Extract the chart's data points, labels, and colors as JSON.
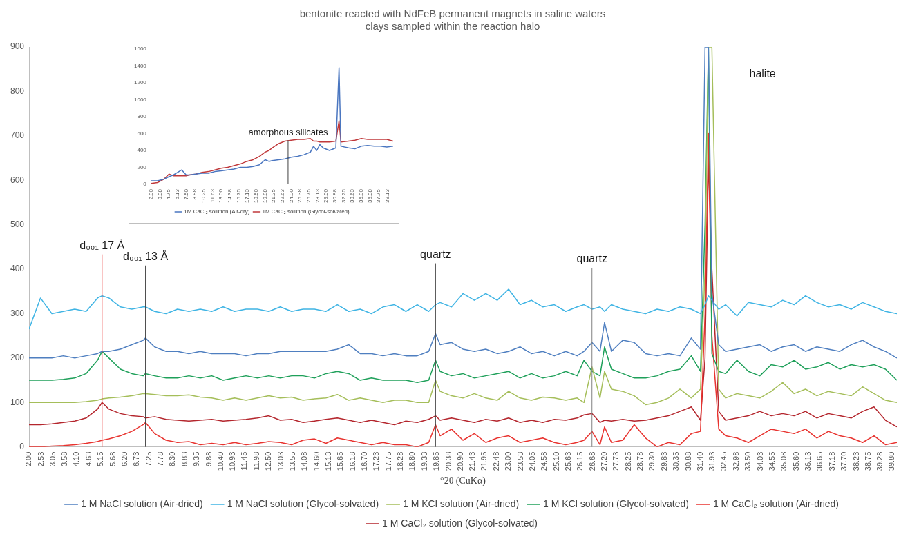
{
  "chart_data": [
    {
      "type": "line",
      "title": "bentonite reacted with NdFeB permanent magnets in saline waters",
      "subtitle": "clays sampled within the reaction halo",
      "xlabel": "°2θ (CuKα)",
      "x": [
        2,
        2.5,
        3,
        3.5,
        4,
        4.5,
        5,
        5.2,
        5.5,
        6,
        6.5,
        7,
        7.1,
        7.5,
        8,
        8.5,
        9,
        9.5,
        10,
        10.5,
        11,
        11.5,
        12,
        12.5,
        13,
        13.5,
        14,
        14.5,
        15,
        15.5,
        16,
        16.5,
        17,
        17.5,
        18,
        18.5,
        19,
        19.5,
        19.8,
        20,
        20.5,
        21,
        21.5,
        22,
        22.5,
        23,
        23.5,
        24,
        24.5,
        25,
        25.5,
        26,
        26.3,
        26.65,
        27,
        27.2,
        27.5,
        28,
        28.5,
        29,
        29.5,
        30,
        30.5,
        31,
        31.4,
        31.6,
        31.75,
        31.9,
        32.2,
        32.5,
        33,
        33.5,
        34,
        34.5,
        35,
        35.5,
        36,
        36.5,
        37,
        37.5,
        38,
        38.5,
        39,
        39.5,
        40
      ],
      "series": [
        {
          "name": "1 M NaCl solution (Air-dried)",
          "color": "#4f7fc0",
          "values": [
            200,
            200,
            200,
            205,
            200,
            205,
            210,
            215,
            215,
            220,
            230,
            240,
            245,
            225,
            215,
            215,
            210,
            215,
            210,
            210,
            210,
            205,
            210,
            210,
            215,
            215,
            215,
            215,
            215,
            220,
            230,
            210,
            210,
            205,
            210,
            205,
            205,
            215,
            255,
            230,
            235,
            220,
            215,
            220,
            210,
            215,
            225,
            210,
            215,
            205,
            215,
            205,
            215,
            235,
            215,
            280,
            215,
            240,
            235,
            210,
            205,
            210,
            205,
            245,
            220,
            900,
            900,
            345,
            230,
            215,
            220,
            225,
            230,
            215,
            225,
            230,
            215,
            225,
            220,
            215,
            230,
            240,
            225,
            215,
            200
          ]
        },
        {
          "name": "1 M NaCl solution (Glycol-solvated)",
          "color": "#3fb4e4",
          "values": [
            265,
            335,
            300,
            305,
            310,
            305,
            335,
            340,
            335,
            315,
            310,
            315,
            315,
            305,
            300,
            310,
            305,
            310,
            305,
            315,
            305,
            310,
            310,
            305,
            315,
            305,
            310,
            310,
            305,
            320,
            305,
            310,
            300,
            315,
            320,
            305,
            320,
            305,
            320,
            325,
            315,
            345,
            330,
            345,
            330,
            355,
            320,
            330,
            315,
            320,
            305,
            315,
            320,
            310,
            315,
            305,
            320,
            310,
            305,
            300,
            310,
            305,
            315,
            310,
            300,
            320,
            340,
            330,
            310,
            320,
            295,
            325,
            320,
            315,
            330,
            320,
            340,
            325,
            315,
            320,
            310,
            325,
            315,
            305,
            300
          ]
        },
        {
          "name": "1 M KCl solution (Air-dried)",
          "color": "#a5be5a",
          "values": [
            100,
            100,
            100,
            100,
            100,
            102,
            105,
            108,
            110,
            112,
            115,
            120,
            120,
            118,
            115,
            115,
            117,
            112,
            110,
            105,
            110,
            105,
            110,
            115,
            110,
            112,
            105,
            108,
            110,
            118,
            105,
            110,
            105,
            100,
            105,
            105,
            100,
            100,
            150,
            125,
            115,
            110,
            120,
            110,
            105,
            125,
            110,
            105,
            112,
            110,
            105,
            110,
            100,
            180,
            110,
            170,
            130,
            125,
            115,
            95,
            100,
            110,
            130,
            110,
            130,
            400,
            900,
            900,
            130,
            110,
            120,
            115,
            110,
            125,
            145,
            120,
            130,
            115,
            125,
            120,
            115,
            135,
            120,
            105,
            100
          ]
        },
        {
          "name": "1 M KCl solution (Glycol-solvated)",
          "color": "#1fa05a",
          "values": [
            150,
            150,
            150,
            152,
            155,
            165,
            195,
            215,
            200,
            175,
            165,
            160,
            165,
            160,
            155,
            155,
            160,
            155,
            160,
            150,
            155,
            160,
            155,
            160,
            155,
            160,
            160,
            155,
            165,
            170,
            165,
            150,
            155,
            150,
            150,
            150,
            145,
            150,
            195,
            170,
            160,
            165,
            155,
            160,
            165,
            170,
            155,
            165,
            155,
            160,
            170,
            160,
            195,
            170,
            160,
            225,
            175,
            165,
            155,
            155,
            160,
            170,
            175,
            205,
            170,
            500,
            900,
            210,
            170,
            165,
            195,
            170,
            160,
            185,
            180,
            195,
            175,
            180,
            190,
            175,
            185,
            180,
            185,
            175,
            150
          ]
        },
        {
          "name": "1 M CaCl₂ solution (Air-dried)",
          "color": "#e8332f",
          "values": [
            0,
            0,
            2,
            3,
            5,
            8,
            12,
            15,
            18,
            25,
            35,
            50,
            55,
            30,
            15,
            10,
            12,
            5,
            8,
            5,
            10,
            5,
            8,
            12,
            10,
            5,
            15,
            18,
            8,
            20,
            15,
            10,
            5,
            10,
            5,
            5,
            0,
            10,
            50,
            25,
            40,
            15,
            30,
            10,
            20,
            25,
            10,
            15,
            20,
            10,
            5,
            10,
            15,
            35,
            5,
            45,
            10,
            15,
            50,
            20,
            0,
            10,
            5,
            30,
            35,
            300,
            705,
            250,
            40,
            25,
            20,
            10,
            25,
            40,
            35,
            30,
            40,
            20,
            35,
            25,
            20,
            10,
            25,
            5,
            10
          ]
        },
        {
          "name": "1 M CaCl₂ solution (Glycol-solvated)",
          "color": "#b4262d",
          "values": [
            50,
            50,
            52,
            55,
            58,
            65,
            85,
            100,
            85,
            75,
            70,
            68,
            65,
            68,
            62,
            60,
            58,
            60,
            62,
            58,
            60,
            62,
            65,
            70,
            60,
            62,
            55,
            58,
            62,
            65,
            60,
            55,
            60,
            55,
            50,
            58,
            55,
            62,
            70,
            60,
            65,
            60,
            55,
            62,
            58,
            65,
            55,
            60,
            55,
            62,
            60,
            65,
            72,
            75,
            55,
            60,
            58,
            62,
            58,
            60,
            65,
            70,
            80,
            90,
            60,
            200,
            645,
            400,
            80,
            60,
            65,
            70,
            80,
            70,
            75,
            70,
            80,
            65,
            75,
            70,
            65,
            80,
            90,
            60,
            45
          ]
        }
      ],
      "xlim": [
        2,
        40
      ],
      "xticks": [
        {
          "value": 2,
          "label": "2.00"
        },
        {
          "value": 2.53,
          "label": "2.53"
        },
        {
          "value": 3.05,
          "label": "3.05"
        },
        {
          "value": 3.58,
          "label": "3.58"
        },
        {
          "value": 4.1,
          "label": "4.10"
        },
        {
          "value": 4.63,
          "label": "4.63"
        },
        {
          "value": 5.15,
          "label": "5.15"
        },
        {
          "value": 5.68,
          "label": "5.68"
        },
        {
          "value": 6.2,
          "label": "6.20"
        },
        {
          "value": 6.73,
          "label": "6.73"
        },
        {
          "value": 7.25,
          "label": "7.25"
        },
        {
          "value": 7.78,
          "label": "7.78"
        },
        {
          "value": 8.3,
          "label": "8.30"
        },
        {
          "value": 8.83,
          "label": "8.83"
        },
        {
          "value": 9.35,
          "label": "9.35"
        },
        {
          "value": 9.88,
          "label": "9.88"
        },
        {
          "value": 10.4,
          "label": "10.40"
        },
        {
          "value": 10.93,
          "label": "10.93"
        },
        {
          "value": 11.45,
          "label": "11.45"
        },
        {
          "value": 11.98,
          "label": "11.98"
        },
        {
          "value": 12.5,
          "label": "12.50"
        },
        {
          "value": 13.03,
          "label": "13.03"
        },
        {
          "value": 13.55,
          "label": "13.55"
        },
        {
          "value": 14.08,
          "label": "14.08"
        },
        {
          "value": 14.6,
          "label": "14.60"
        },
        {
          "value": 15.13,
          "label": "15.13"
        },
        {
          "value": 15.65,
          "label": "15.65"
        },
        {
          "value": 16.18,
          "label": "16.18"
        },
        {
          "value": 16.7,
          "label": "16.70"
        },
        {
          "value": 17.23,
          "label": "17.23"
        },
        {
          "value": 17.75,
          "label": "17.75"
        },
        {
          "value": 18.28,
          "label": "18.28"
        },
        {
          "value": 18.8,
          "label": "18.80"
        },
        {
          "value": 19.33,
          "label": "19.33"
        },
        {
          "value": 19.85,
          "label": "19.85"
        },
        {
          "value": 20.38,
          "label": "20.38"
        },
        {
          "value": 20.9,
          "label": "20.90"
        },
        {
          "value": 21.43,
          "label": "21.43"
        },
        {
          "value": 21.95,
          "label": "21.95"
        },
        {
          "value": 22.48,
          "label": "22.48"
        },
        {
          "value": 23,
          "label": "23.00"
        },
        {
          "value": 23.53,
          "label": "23.53"
        },
        {
          "value": 24.05,
          "label": "24.05"
        },
        {
          "value": 24.58,
          "label": "24.58"
        },
        {
          "value": 25.1,
          "label": "25.10"
        },
        {
          "value": 25.63,
          "label": "25.63"
        },
        {
          "value": 26.15,
          "label": "26.15"
        },
        {
          "value": 26.68,
          "label": "26.68"
        },
        {
          "value": 27.2,
          "label": "27.20"
        },
        {
          "value": 27.73,
          "label": "27.73"
        },
        {
          "value": 28.25,
          "label": "28.25"
        },
        {
          "value": 28.78,
          "label": "28.78"
        },
        {
          "value": 29.3,
          "label": "29.30"
        },
        {
          "value": 29.83,
          "label": "29.83"
        },
        {
          "value": 30.35,
          "label": "30.35"
        },
        {
          "value": 30.88,
          "label": "30.88"
        },
        {
          "value": 31.4,
          "label": "31.40"
        },
        {
          "value": 31.93,
          "label": "31.93"
        },
        {
          "value": 32.45,
          "label": "32.45"
        },
        {
          "value": 32.98,
          "label": "32.98"
        },
        {
          "value": 33.5,
          "label": "33.50"
        },
        {
          "value": 34.03,
          "label": "34.03"
        },
        {
          "value": 34.55,
          "label": "34.55"
        },
        {
          "value": 35.08,
          "label": "35.08"
        },
        {
          "value": 35.6,
          "label": "35.60"
        },
        {
          "value": 36.13,
          "label": "36.13"
        },
        {
          "value": 36.65,
          "label": "36.65"
        },
        {
          "value": 37.18,
          "label": "37.18"
        },
        {
          "value": 37.7,
          "label": "37.70"
        },
        {
          "value": 38.23,
          "label": "38.23"
        },
        {
          "value": 38.75,
          "label": "38.75"
        },
        {
          "value": 39.28,
          "label": "39.28"
        },
        {
          "value": 39.8,
          "label": "39.80"
        }
      ],
      "ylim": [
        0,
        900
      ],
      "yticks": [
        0,
        100,
        200,
        300,
        400,
        500,
        600,
        700,
        800,
        900
      ],
      "grid": false,
      "legend": "bottom",
      "marker": "none",
      "line_style": "solid",
      "ref_lines": [
        {
          "axis": "x",
          "value": 5.2,
          "label": "d₀₀₁ 17 Å",
          "color": "#e8332f"
        },
        {
          "axis": "x",
          "value": 7.1,
          "label": "d₀₀₁ 13 Å",
          "color": "#404040"
        },
        {
          "axis": "x",
          "value": 19.8,
          "label": "quartz",
          "color": "#404040"
        },
        {
          "axis": "x",
          "value": 26.65,
          "label": "quartz",
          "color": "#808080"
        }
      ],
      "annotations": [
        "halite"
      ]
    },
    {
      "type": "line",
      "x": [
        2,
        3,
        4,
        4.8,
        5.5,
        6.8,
        7.5,
        8,
        9,
        10,
        11,
        12,
        13,
        14,
        15,
        16,
        17,
        18,
        19,
        19.9,
        20.5,
        21,
        22,
        23,
        24,
        25,
        26,
        27,
        27.5,
        28,
        28.5,
        29,
        30,
        31,
        31.5,
        31.8,
        33,
        34,
        35,
        36,
        37,
        38,
        39,
        40
      ],
      "series": [
        {
          "name": "1M CaCl₂ solution (Air-dry)",
          "color": "#4a76c0",
          "values": [
            40,
            40,
            60,
            90,
            110,
            170,
            110,
            110,
            120,
            130,
            130,
            150,
            160,
            170,
            180,
            200,
            200,
            210,
            230,
            290,
            270,
            280,
            290,
            300,
            320,
            330,
            350,
            380,
            450,
            400,
            470,
            430,
            400,
            430,
            1380,
            450,
            430,
            420,
            450,
            460,
            450,
            450,
            440,
            450
          ]
        },
        {
          "name": "1M CaCl₂ solution (Glycol-solvated)",
          "color": "#c0393b",
          "values": [
            10,
            20,
            60,
            120,
            100,
            100,
            100,
            110,
            120,
            140,
            150,
            170,
            190,
            200,
            220,
            240,
            270,
            290,
            330,
            380,
            400,
            430,
            480,
            510,
            520,
            530,
            530,
            540,
            510,
            510,
            500,
            500,
            500,
            510,
            750,
            500,
            510,
            520,
            540,
            530,
            530,
            530,
            530,
            510
          ]
        }
      ],
      "xlim": [
        2,
        40
      ],
      "xticks": [
        {
          "value": 2,
          "label": "2.00"
        },
        {
          "value": 3.38,
          "label": "3.38"
        },
        {
          "value": 4.75,
          "label": "4.75"
        },
        {
          "value": 6.13,
          "label": "6.13"
        },
        {
          "value": 7.5,
          "label": "7.50"
        },
        {
          "value": 8.88,
          "label": "8.88"
        },
        {
          "value": 10.25,
          "label": "10.25"
        },
        {
          "value": 11.63,
          "label": "11.63"
        },
        {
          "value": 13,
          "label": "13.00"
        },
        {
          "value": 14.38,
          "label": "14.38"
        },
        {
          "value": 15.75,
          "label": "15.75"
        },
        {
          "value": 17.13,
          "label": "17.13"
        },
        {
          "value": 18.5,
          "label": "18.50"
        },
        {
          "value": 19.88,
          "label": "19.88"
        },
        {
          "value": 21.25,
          "label": "21.25"
        },
        {
          "value": 22.63,
          "label": "22.63"
        },
        {
          "value": 24,
          "label": "24.00"
        },
        {
          "value": 25.38,
          "label": "25.38"
        },
        {
          "value": 26.75,
          "label": "26.75"
        },
        {
          "value": 28.13,
          "label": "28.13"
        },
        {
          "value": 29.5,
          "label": "29.50"
        },
        {
          "value": 30.88,
          "label": "30.88"
        },
        {
          "value": 32.25,
          "label": "32.25"
        },
        {
          "value": 33.63,
          "label": "33.63"
        },
        {
          "value": 35,
          "label": "35.00"
        },
        {
          "value": 36.38,
          "label": "36.38"
        },
        {
          "value": 37.75,
          "label": "37.75"
        },
        {
          "value": 39.13,
          "label": "39.13"
        }
      ],
      "ylim": [
        0,
        1600
      ],
      "yticks": [
        0,
        200,
        400,
        600,
        800,
        1000,
        1200,
        1400,
        1600
      ],
      "grid": false,
      "legend": "bottom",
      "marker": "none",
      "line_style": "solid",
      "annotations": [
        {
          "text": "amorphous silicates",
          "x": 23.5,
          "y": 520
        }
      ]
    }
  ]
}
